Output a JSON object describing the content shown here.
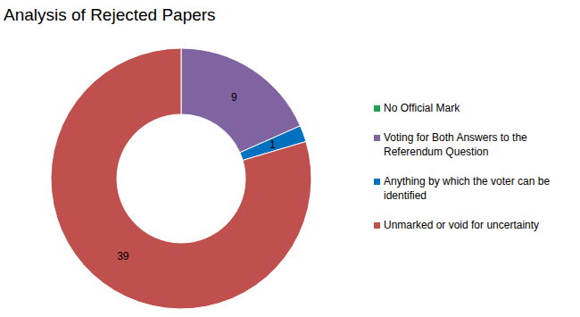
{
  "chart_data": {
    "type": "pie",
    "title": "Analysis of Rejected Papers",
    "categories": [
      "No Official Mark",
      "Voting for Both Answers to the Referendum Question",
      "Anything by which the voter can be identified",
      "Unmarked or void for uncertainty"
    ],
    "values": [
      0,
      9,
      1,
      39
    ],
    "colors": [
      "#1e9e4f",
      "#8064a2",
      "#0070c0",
      "#c0504d"
    ],
    "data_labels": true,
    "legend": "right"
  }
}
